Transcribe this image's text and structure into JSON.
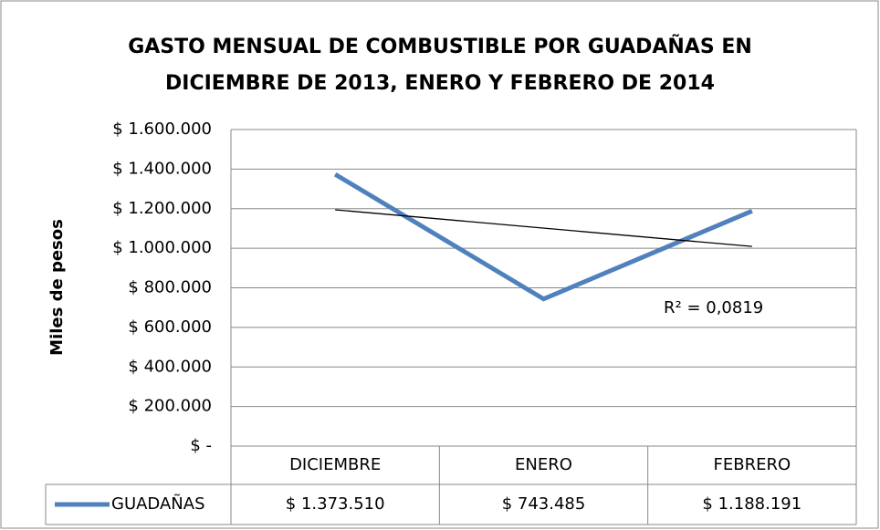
{
  "chart_data": {
    "type": "line",
    "title": [
      "GASTO MENSUAL DE COMBUSTIBLE POR GUADAÑAS EN",
      "DICIEMBRE DE 2013, ENERO Y FEBRERO DE 2014"
    ],
    "y_label": "Miles de pesos",
    "categories": [
      "DICIEMBRE",
      "ENERO",
      "FEBRERO"
    ],
    "series": [
      {
        "name": "GUADAÑAS",
        "color": "#4f81bd",
        "values": [
          1373510,
          743485,
          1188191
        ],
        "value_labels": [
          "$ 1.373.510",
          "$ 743.485",
          "$ 1.188.191"
        ]
      }
    ],
    "trendline": {
      "type": "linear",
      "color": "#000000",
      "annotation": "R² = 0,0819"
    },
    "ylim": [
      0,
      1600000
    ],
    "yticks": [
      {
        "value": 0,
        "label": "$ -"
      },
      {
        "value": 200000,
        "label": "$ 200.000"
      },
      {
        "value": 400000,
        "label": "$ 400.000"
      },
      {
        "value": 600000,
        "label": "$ 600.000"
      },
      {
        "value": 800000,
        "label": "$ 800.000"
      },
      {
        "value": 1000000,
        "label": "$ 1.000.000"
      },
      {
        "value": 1200000,
        "label": "$ 1.200.000"
      },
      {
        "value": 1400000,
        "label": "$ 1.400.000"
      },
      {
        "value": 1600000,
        "label": "$ 1.600.000"
      }
    ],
    "grid": true,
    "data_table": true
  }
}
